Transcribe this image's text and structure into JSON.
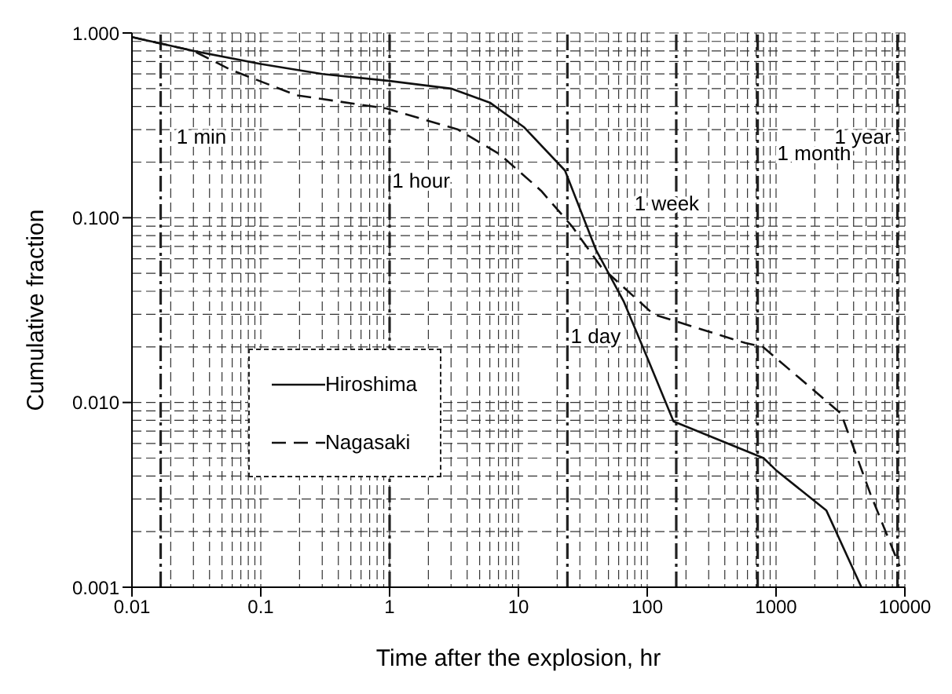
{
  "chart_data": {
    "type": "line",
    "xlabel": "Time after the explosion, hr",
    "ylabel": "Cumulative fraction",
    "log": "xy",
    "grid": true,
    "legend": "left",
    "xlim": [
      0.01,
      10000
    ],
    "xticks": [
      0.01,
      0.1,
      1,
      10,
      100,
      1000,
      10000
    ],
    "ylim": [
      0.001,
      1
    ],
    "yticks": [
      {
        "value": 0.001,
        "label": "0.001"
      },
      {
        "value": 0.01,
        "label": "0.010"
      },
      {
        "value": 0.1,
        "label": "0.100"
      },
      {
        "value": 1,
        "label": "1.000"
      }
    ],
    "series": [
      {
        "name": "Hiroshima",
        "color": "#111111",
        "line_style": "solid",
        "x": [
          0.01,
          0.03,
          0.1,
          0.3,
          1,
          3,
          6,
          11,
          23,
          40,
          66,
          100,
          160,
          800,
          1000,
          2460,
          4600
        ],
        "values": [
          0.95,
          0.8,
          0.68,
          0.6,
          0.55,
          0.5,
          0.42,
          0.31,
          0.18,
          0.067,
          0.035,
          0.0175,
          0.0079,
          0.005,
          0.0043,
          0.0026,
          0.001
        ]
      },
      {
        "name": "Nagasaki",
        "color": "#111111",
        "line_style": "dashed",
        "x": [
          0.01,
          0.03,
          0.059,
          0.19,
          0.95,
          3.4,
          7.2,
          15,
          26,
          44,
          112,
          575,
          790,
          3200,
          5400,
          9100
        ],
        "values": [
          0.95,
          0.8,
          0.63,
          0.46,
          0.39,
          0.3,
          0.22,
          0.14,
          0.09,
          0.054,
          0.03,
          0.021,
          0.02,
          0.0087,
          0.0032,
          0.0013
        ]
      }
    ],
    "ref_lines": [
      {
        "axis": "x",
        "value": 0.0167,
        "label": "1 min",
        "color": "#222222",
        "line_style": "dashed"
      },
      {
        "axis": "x",
        "value": 1,
        "label": "1 hour",
        "color": "#222222",
        "line_style": "dashed"
      },
      {
        "axis": "x",
        "value": 24,
        "label": "1 day",
        "color": "#222222",
        "line_style": "dashed"
      },
      {
        "axis": "x",
        "value": 168,
        "label": "1 week",
        "color": "#222222",
        "line_style": "dashed"
      },
      {
        "axis": "x",
        "value": 720,
        "label": "1 month",
        "color": "#222222",
        "line_style": "dashed"
      },
      {
        "axis": "x",
        "value": 8760,
        "label": "1 year",
        "color": "#222222",
        "line_style": "dashed"
      }
    ]
  }
}
